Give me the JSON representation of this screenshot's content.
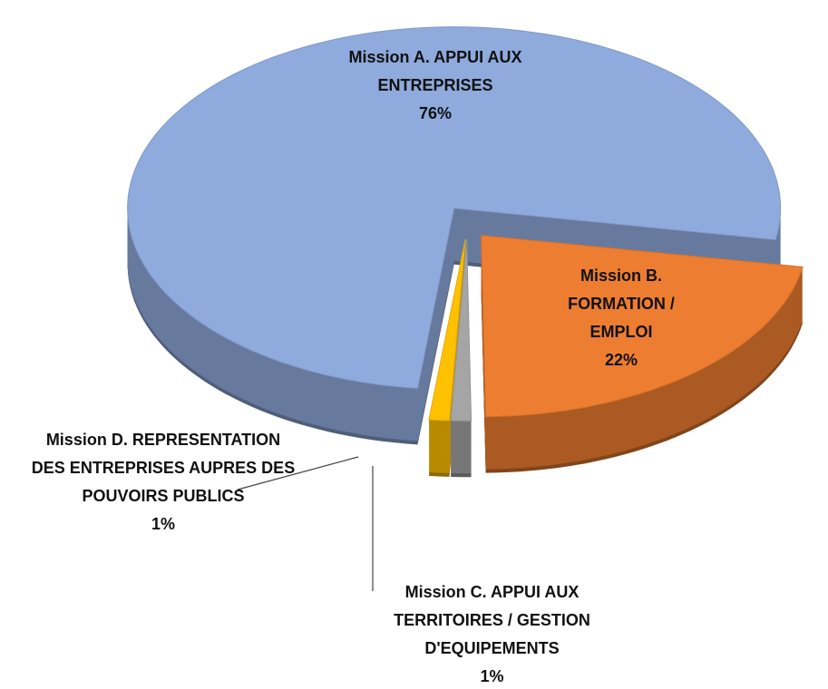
{
  "chart_data": {
    "type": "pie",
    "categories": [
      "Mission A. APPUI AUX ENTREPRISES",
      "Mission B. FORMATION / EMPLOI",
      "Mission C. APPUI AUX TERRITOIRES / GESTION D'EQUIPEMENTS",
      "Mission D. REPRESENTATION DES ENTREPRISES AUPRES DES POUVOIRS PUBLICS"
    ],
    "values": [
      76,
      22,
      1,
      1
    ],
    "value_labels": [
      "76%",
      "22%",
      "1%",
      "1%"
    ],
    "colors": [
      "#8faadc",
      "#ed7d31",
      "#a5a5a5",
      "#ffc000"
    ]
  }
}
